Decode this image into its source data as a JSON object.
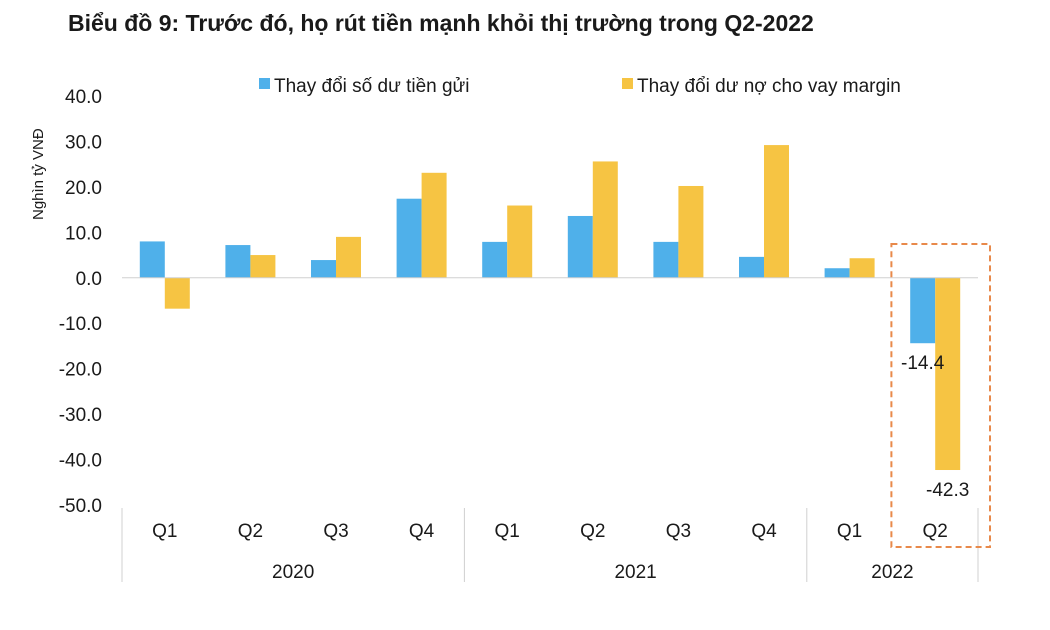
{
  "chart_data": {
    "type": "bar",
    "title": "Biểu đồ 9: Trước đó, họ rút tiền mạnh khỏi thị trường trong Q2-2022",
    "ylabel": "Nghìn tỷ VNĐ",
    "xlabel": "",
    "ylim": [
      -50,
      40
    ],
    "yticks": [
      "40.0",
      "30.0",
      "20.0",
      "10.0",
      "0.0",
      "-10.0",
      "-20.0",
      "-30.0",
      "-40.0",
      "-50.0"
    ],
    "ytick_values": [
      40,
      30,
      20,
      10,
      0,
      -10,
      -20,
      -30,
      -40,
      -50
    ],
    "categories": [
      "Q1",
      "Q2",
      "Q3",
      "Q4",
      "Q1",
      "Q2",
      "Q3",
      "Q4",
      "Q1",
      "Q2"
    ],
    "groups": [
      {
        "label": "2020",
        "count": 4
      },
      {
        "label": "2021",
        "count": 4
      },
      {
        "label": "2022",
        "count": 2
      }
    ],
    "series": [
      {
        "name": "Thay đổi số dư tiền gửi",
        "color": "#4fb0ea",
        "values": [
          8.0,
          7.2,
          3.9,
          17.4,
          7.9,
          13.6,
          7.9,
          4.6,
          2.1,
          -14.4
        ]
      },
      {
        "name": "Thay đổi dư nợ cho vay margin",
        "color": "#f6c443",
        "values": [
          -6.8,
          5.0,
          9.0,
          23.1,
          15.9,
          25.6,
          20.2,
          29.2,
          4.3,
          -42.3
        ]
      }
    ],
    "data_labels": [
      {
        "series": 0,
        "index": 9,
        "text": "-14.4"
      },
      {
        "series": 1,
        "index": 9,
        "text": "-42.3"
      }
    ],
    "legend_position": "top",
    "grid": false,
    "highlight": {
      "category_index": 9,
      "color": "#e8894a",
      "style": "dashed"
    }
  }
}
